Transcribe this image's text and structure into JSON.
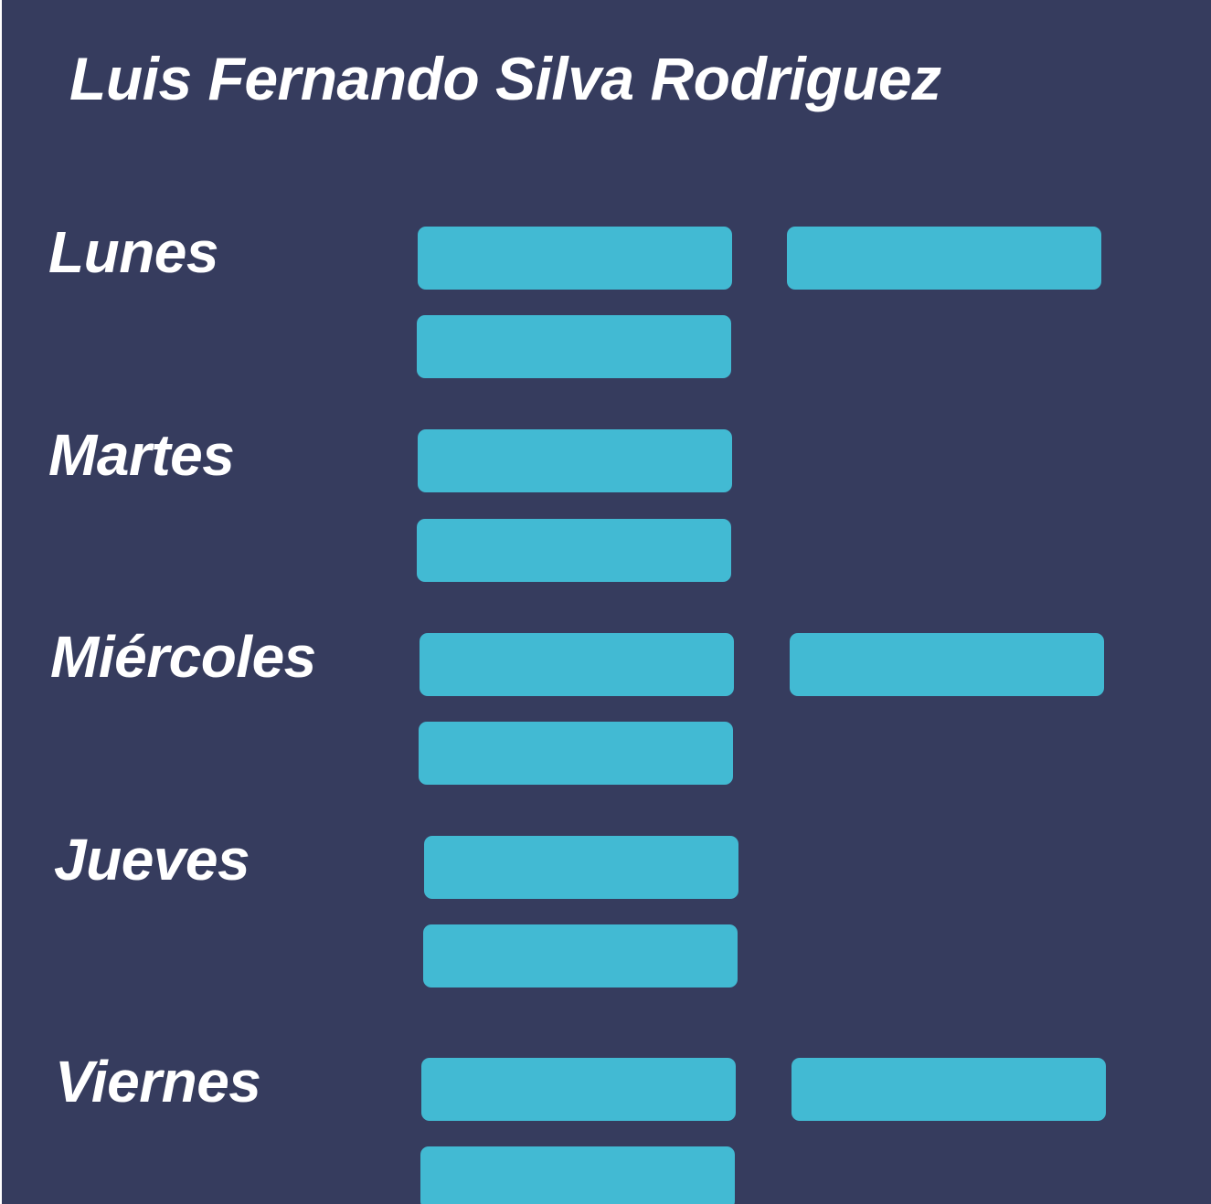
{
  "header": {
    "name": "Luis Fernando Silva Rodriguez"
  },
  "colors": {
    "background": "#363c5e",
    "slot": "#42bad3",
    "text": "#ffffff"
  },
  "days": [
    {
      "label": "Lunes",
      "slots": 3
    },
    {
      "label": "Martes",
      "slots": 2
    },
    {
      "label": "Miércoles",
      "slots": 3
    },
    {
      "label": "Jueves",
      "slots": 2
    },
    {
      "label": "Viernes",
      "slots": 3
    }
  ]
}
